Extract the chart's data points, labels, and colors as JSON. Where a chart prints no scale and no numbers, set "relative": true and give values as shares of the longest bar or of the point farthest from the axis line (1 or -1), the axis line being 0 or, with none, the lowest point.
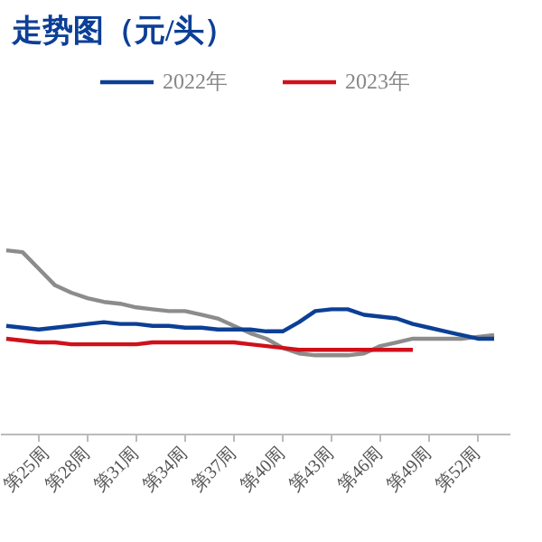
{
  "chart_data": {
    "type": "line",
    "title": "走势图（元/头）",
    "relative": true,
    "legend": "top",
    "grid": false,
    "marker": "none",
    "line_style": "solid",
    "categories": [
      null,
      null,
      "第25周",
      null,
      null,
      "第28周",
      null,
      null,
      "第31周",
      null,
      null,
      "第34周",
      null,
      null,
      "第37周",
      null,
      null,
      "第40周",
      null,
      null,
      "第43周",
      null,
      null,
      "第46周",
      null,
      null,
      "第49周",
      null,
      null,
      "第52周",
      null
    ],
    "series": [
      {
        "color": "#8c8c8c",
        "values": [
          1.0,
          0.99,
          0.9,
          0.81,
          0.77,
          0.74,
          0.72,
          0.71,
          0.69,
          0.68,
          0.67,
          0.67,
          0.65,
          0.63,
          0.59,
          0.55,
          0.52,
          0.47,
          0.44,
          0.43,
          0.43,
          0.43,
          0.44,
          0.48,
          0.5,
          0.52,
          0.52,
          0.52,
          0.52,
          0.53,
          0.54
        ]
      },
      {
        "name": "2022年",
        "color": "#0c3f96",
        "values": [
          0.59,
          0.58,
          0.57,
          0.58,
          0.59,
          0.6,
          0.61,
          0.6,
          0.6,
          0.59,
          0.59,
          0.58,
          0.58,
          0.57,
          0.57,
          0.57,
          0.56,
          0.56,
          0.61,
          0.67,
          0.68,
          0.68,
          0.65,
          0.64,
          0.63,
          0.6,
          0.58,
          0.56,
          0.54,
          0.52,
          0.52
        ]
      },
      {
        "name": "2023年",
        "color": "#d0101a",
        "values": [
          0.52,
          0.51,
          0.5,
          0.5,
          0.49,
          0.49,
          0.49,
          0.49,
          0.49,
          0.5,
          0.5,
          0.5,
          0.5,
          0.5,
          0.5,
          0.49,
          0.48,
          0.47,
          0.46,
          0.46,
          0.46,
          0.46,
          0.46,
          0.46,
          0.46,
          0.46,
          null,
          null,
          null,
          null,
          null
        ]
      }
    ]
  }
}
